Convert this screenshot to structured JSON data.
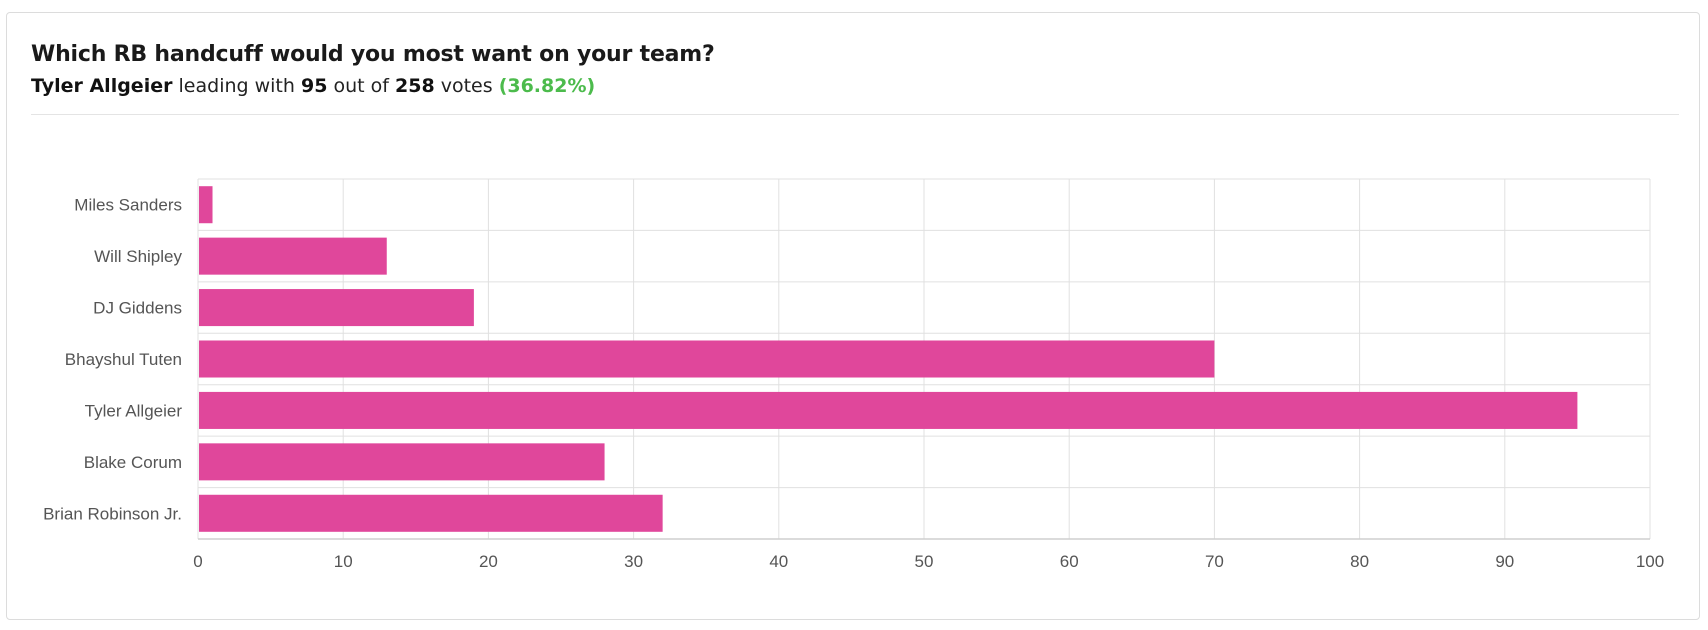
{
  "header": {
    "title": "Which RB handcuff would you most want on your team?",
    "leader_name": "Tyler Allgeier",
    "leader_text_1": "leading with",
    "leader_votes": "95",
    "leader_text_2": "out of",
    "total_votes": "258",
    "leader_text_3": "votes",
    "leader_pct": "(36.82%)"
  },
  "colors": {
    "bar": "#e0479b",
    "grid": "#e0e0e0",
    "leader_pct": "#4cbb4c"
  },
  "chart_data": {
    "type": "bar",
    "orientation": "horizontal",
    "categories": [
      "Miles Sanders",
      "Will Shipley",
      "DJ Giddens",
      "Bhayshul Tuten",
      "Tyler Allgeier",
      "Blake Corum",
      "Brian Robinson Jr."
    ],
    "values": [
      1,
      13,
      19,
      70,
      95,
      28,
      32
    ],
    "xlim": [
      0,
      100
    ],
    "xticks": [
      0,
      10,
      20,
      30,
      40,
      50,
      60,
      70,
      80,
      90,
      100
    ],
    "grid": true,
    "legend": "none"
  }
}
